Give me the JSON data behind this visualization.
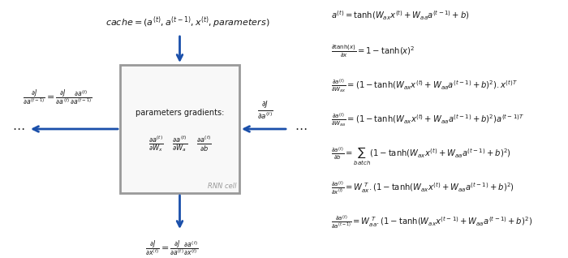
{
  "fig_width": 7.0,
  "fig_height": 3.18,
  "dpi": 100,
  "bg_color": "#ffffff",
  "box_color": "#999999",
  "box_face": "#f8f8f8",
  "arrow_color": "#1a4faa",
  "text_color": "#1a1a1a",
  "gray_color": "#999999"
}
